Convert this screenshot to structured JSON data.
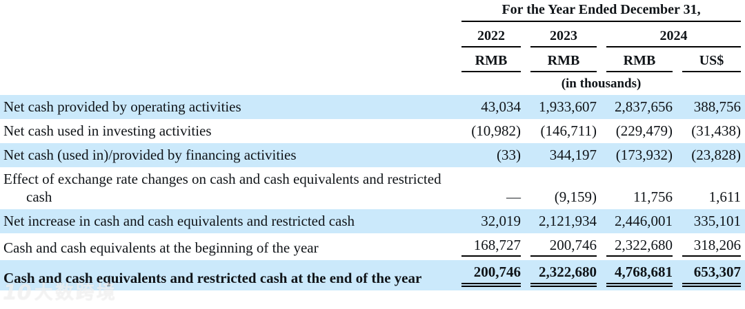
{
  "table": {
    "header": {
      "period_title": "For the Year Ended December 31,",
      "years": [
        "2022",
        "2023",
        "2024"
      ],
      "currencies": [
        "RMB",
        "RMB",
        "RMB",
        "US$"
      ],
      "units_note": "(in thousands)"
    },
    "rows": [
      {
        "label": "Net cash provided by operating activities",
        "values": [
          "43,034",
          "1,933,607",
          "2,837,656",
          "388,756"
        ]
      },
      {
        "label": "Net cash used in investing activities",
        "values": [
          "(10,982)",
          "(146,711)",
          "(229,479)",
          "(31,438)"
        ]
      },
      {
        "label": "Net cash (used in)/provided by financing activities",
        "values": [
          "(33)",
          "344,197",
          "(173,932)",
          "(23,828)"
        ]
      },
      {
        "label": "Effect of exchange rate changes on cash and cash equivalents and restricted cash",
        "values": [
          "—",
          "(9,159)",
          "11,756",
          "1,611"
        ]
      },
      {
        "label": "Net increase in cash and cash equivalents and restricted cash",
        "values": [
          "32,019",
          "2,121,934",
          "2,446,001",
          "335,101"
        ]
      },
      {
        "label": "Cash and cash equivalents at the beginning of the year",
        "values": [
          "168,727",
          "200,746",
          "2,322,680",
          "318,206"
        ]
      },
      {
        "label": "Cash and cash equivalents and restricted cash at the end of the year",
        "values": [
          "200,746",
          "2,322,680",
          "4,768,681",
          "653,307"
        ]
      }
    ]
  },
  "watermark": {
    "logo": "10",
    "text": "大数跨境"
  },
  "colors": {
    "row_highlight": "#cbe9fb",
    "text": "#101418",
    "rule": "#000000"
  }
}
